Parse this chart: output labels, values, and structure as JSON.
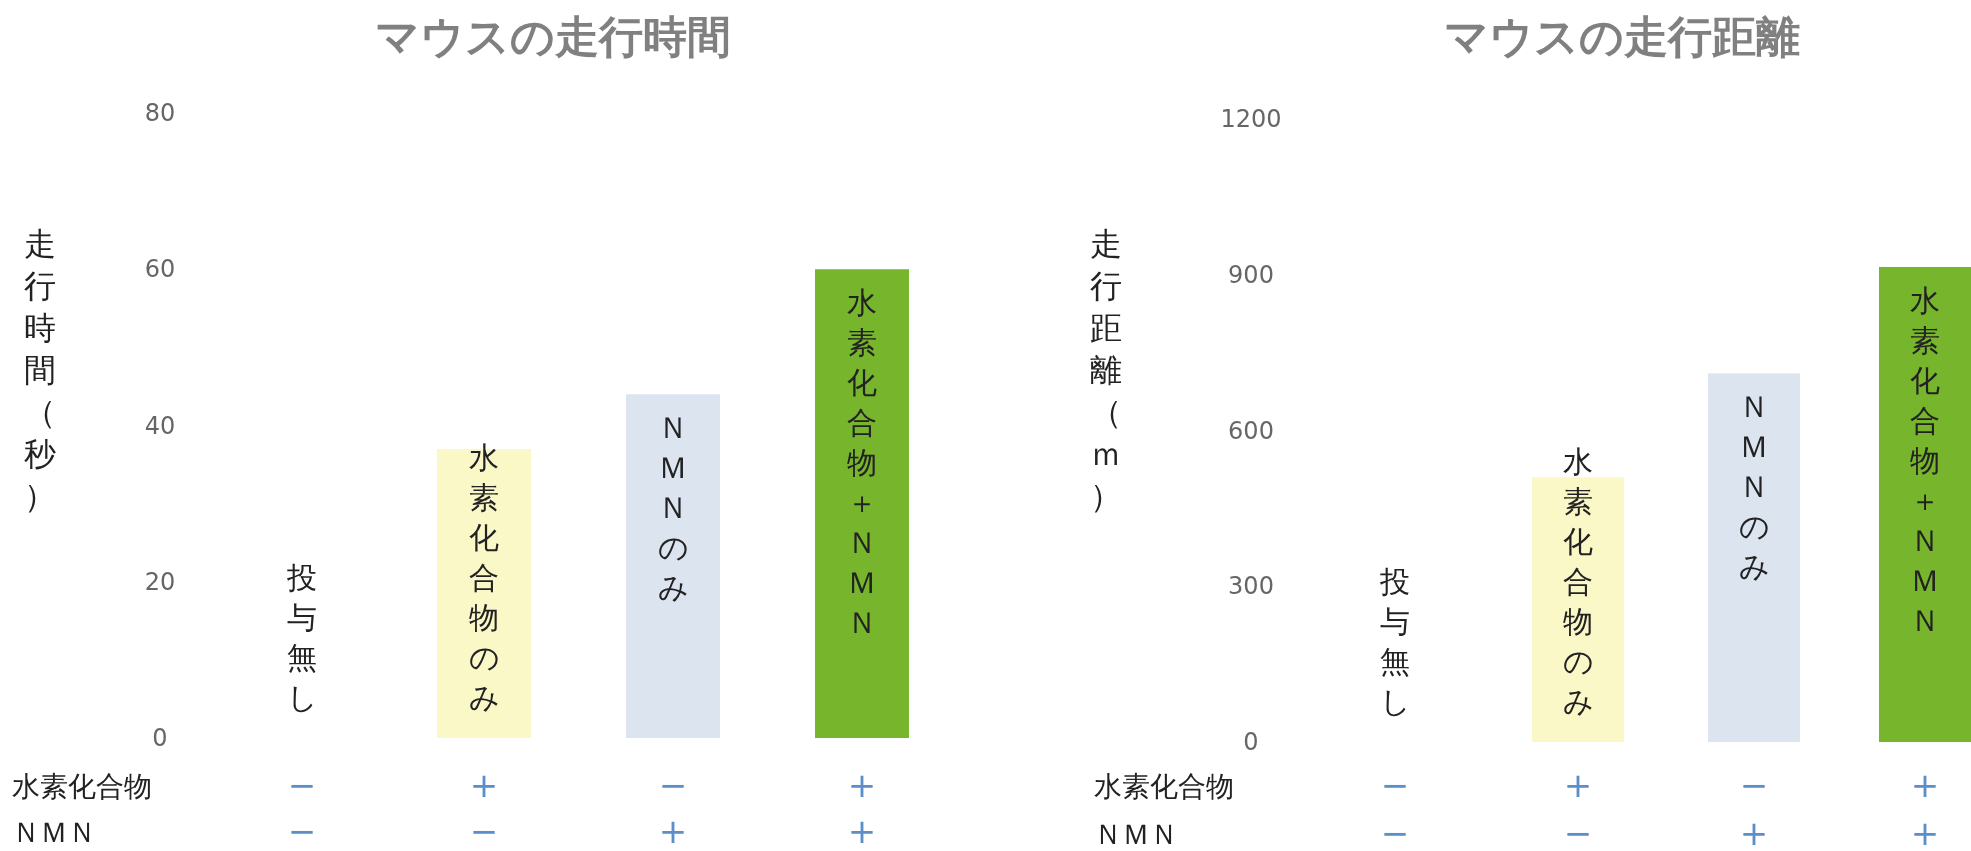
{
  "chart_data": [
    {
      "type": "bar",
      "title": "マウスの走行時間",
      "ylabel": "走行時間（秒）",
      "categories": [
        "投与無し",
        "水素化合物のみ",
        "ＮＭＮのみ",
        "水素化合物＋ＮＭＮ"
      ],
      "values": [
        0,
        37,
        44,
        60
      ],
      "colors": [
        "#ffffff",
        "#fbf8c8",
        "#dbe4ef",
        "#77b52c"
      ],
      "ylim": [
        0,
        80
      ],
      "yticks": [
        0,
        20,
        40,
        60,
        80
      ],
      "annotations": [
        "水素化合物",
        "−",
        "+",
        "−",
        "+",
        "ＮＭＮ",
        "−",
        "−",
        "+",
        "+"
      ]
    },
    {
      "type": "bar",
      "title": "マウスの走行距離",
      "ylabel": "走行距離（ｍ）",
      "categories": [
        "投与無し",
        "水素化合物のみ",
        "ＮＭＮのみ",
        "水素化合物＋ＮＭＮ"
      ],
      "values": [
        0,
        510,
        710,
        915
      ],
      "colors": [
        "#ffffff",
        "#fbf8c8",
        "#dbe4ef",
        "#77b52c"
      ],
      "ylim": [
        0,
        1200
      ],
      "yticks": [
        0,
        300,
        600,
        900,
        1200
      ],
      "annotations": [
        "水素化合物",
        "−",
        "+",
        "−",
        "+",
        "ＮＭＮ",
        "−",
        "−",
        "+",
        "+"
      ]
    }
  ]
}
